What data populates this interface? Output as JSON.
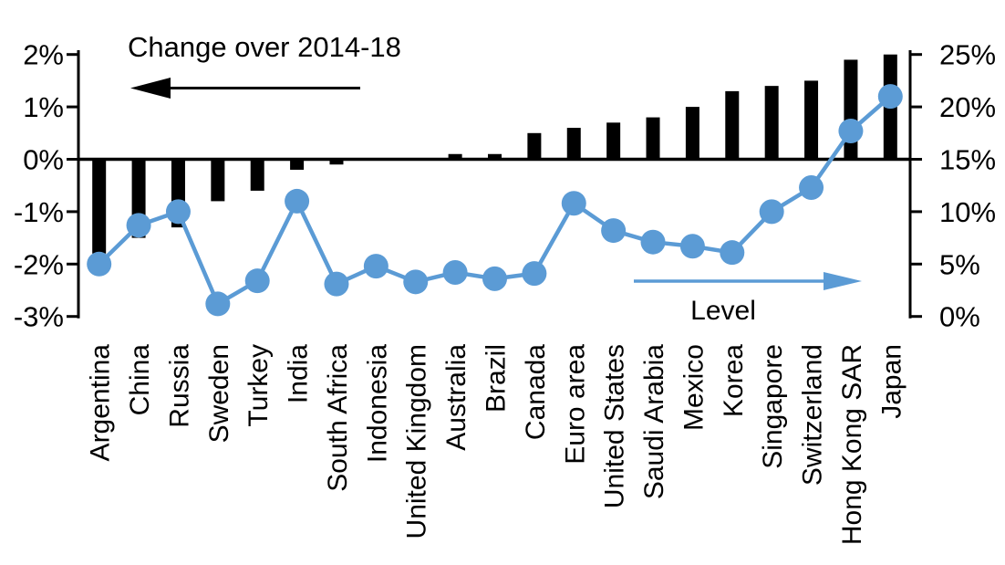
{
  "annotations": {
    "left_series_label": "Change over 2014-18",
    "right_series_label": "Level",
    "left_arrow_icon": "arrow-left",
    "right_arrow_icon": "arrow-right"
  },
  "colors": {
    "bar": "#000000",
    "line": "#5B9BD5",
    "axis": "#000000",
    "background": "#FFFFFF"
  },
  "chart_data": {
    "type": "bar",
    "subtype": "dual-axis bar + line (markers)",
    "title": "",
    "categories": [
      "Argentina",
      "China",
      "Russia",
      "Sweden",
      "Turkey",
      "India",
      "South Africa",
      "Indonesia",
      "United Kingdom",
      "Australia",
      "Brazil",
      "Canada",
      "Euro area",
      "United States",
      "Saudi Arabia",
      "Mexico",
      "Korea",
      "Singapore",
      "Switzerland",
      "Hong Kong SAR",
      "Japan"
    ],
    "series": [
      {
        "name": "Change over 2014-18",
        "type": "bar",
        "axis": "left",
        "color": "#000000",
        "values": [
          -1.8,
          -1.5,
          -1.3,
          -0.8,
          -0.6,
          -0.2,
          -0.1,
          0,
          0,
          0.1,
          0.1,
          0.5,
          0.6,
          0.7,
          0.8,
          1.0,
          1.3,
          1.4,
          1.5,
          1.9,
          2.0
        ]
      },
      {
        "name": "Level",
        "type": "line",
        "axis": "right",
        "color": "#5B9BD5",
        "values": [
          5.0,
          8.7,
          10.0,
          1.2,
          3.4,
          11.0,
          3.1,
          4.8,
          3.3,
          4.2,
          3.6,
          4.1,
          10.8,
          8.2,
          7.1,
          6.7,
          6.1,
          10.0,
          12.3,
          17.7,
          21.0
        ]
      }
    ],
    "left_axis": {
      "tick_labels": [
        "2%",
        "1%",
        "0%",
        "-1%",
        "-2%",
        "-3%"
      ],
      "tick_values": [
        2,
        1,
        0,
        -1,
        -2,
        -3
      ],
      "range": [
        -3,
        2
      ]
    },
    "right_axis": {
      "tick_labels": [
        "25%",
        "20%",
        "15%",
        "10%",
        "5%",
        "0%"
      ],
      "tick_values": [
        25,
        20,
        15,
        10,
        5,
        0
      ],
      "range": [
        0,
        25
      ]
    },
    "grid": false,
    "legend": "in-plot text annotations with direction arrows"
  }
}
